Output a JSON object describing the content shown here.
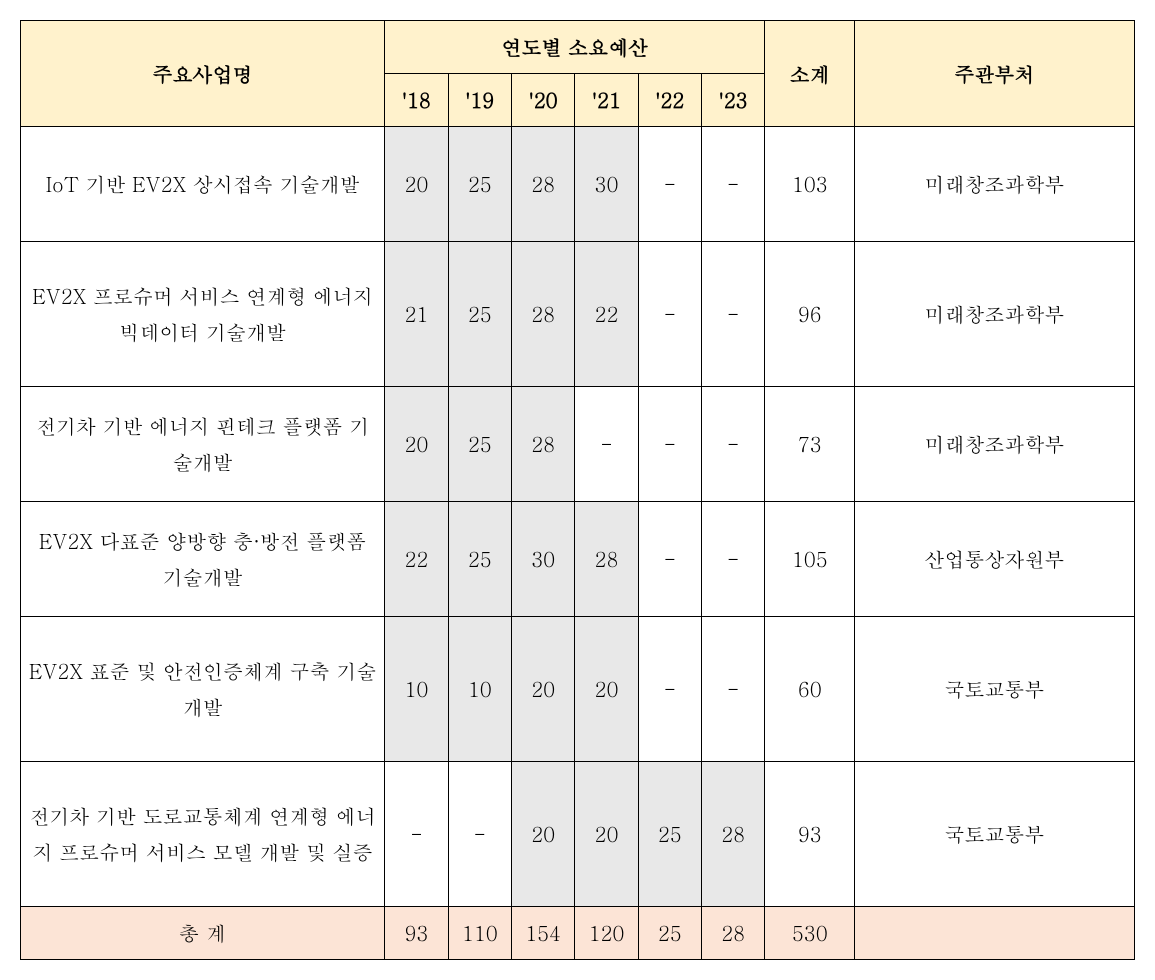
{
  "table": {
    "type": "table",
    "headers": {
      "project": "주요사업명",
      "budget_group": "연도별 소요예산",
      "years": [
        "'18",
        "'19",
        "'20",
        "'21",
        "'22",
        "'23"
      ],
      "subtotal": "소계",
      "department": "주관부처"
    },
    "rows": [
      {
        "project": "IoT 기반 EV2X 상시접속 기술개발",
        "values": [
          "20",
          "25",
          "28",
          "30",
          "-",
          "-"
        ],
        "shaded": [
          true,
          true,
          true,
          true,
          false,
          false
        ],
        "subtotal": "103",
        "department": "미래창조과학부"
      },
      {
        "project": "EV2X 프로슈머 서비스 연계형 에너지 빅데이터 기술개발",
        "values": [
          "21",
          "25",
          "28",
          "22",
          "-",
          "-"
        ],
        "shaded": [
          true,
          true,
          true,
          true,
          false,
          false
        ],
        "subtotal": "96",
        "department": "미래창조과학부"
      },
      {
        "project": "전기차 기반 에너지 핀테크 플랫폼 기술개발",
        "values": [
          "20",
          "25",
          "28",
          "-",
          "-",
          "-"
        ],
        "shaded": [
          true,
          true,
          true,
          false,
          false,
          false
        ],
        "subtotal": "73",
        "department": "미래창조과학부"
      },
      {
        "project": "EV2X 다표준 양방향 충·방전 플랫폼 기술개발",
        "values": [
          "22",
          "25",
          "30",
          "28",
          "-",
          "-"
        ],
        "shaded": [
          true,
          true,
          true,
          true,
          false,
          false
        ],
        "subtotal": "105",
        "department": "산업통상자원부"
      },
      {
        "project": "EV2X 표준 및 안전인증체계 구축 기술개발",
        "values": [
          "10",
          "10",
          "20",
          "20",
          "-",
          "-"
        ],
        "shaded": [
          true,
          true,
          true,
          true,
          false,
          false
        ],
        "subtotal": "60",
        "department": "국토교통부"
      },
      {
        "project": "전기차 기반 도로교통체계 연계형 에너지 프로슈머 서비스 모델 개발 및 실증",
        "values": [
          "-",
          "-",
          "20",
          "20",
          "25",
          "28"
        ],
        "shaded": [
          false,
          false,
          true,
          true,
          true,
          true
        ],
        "subtotal": "93",
        "department": "국토교통부"
      }
    ],
    "total": {
      "label": "총 계",
      "values": [
        "93",
        "110",
        "154",
        "120",
        "25",
        "28"
      ],
      "subtotal": "530",
      "department": ""
    },
    "colors": {
      "header_bg": "#fff2cc",
      "shaded_bg": "#e8e8e8",
      "total_bg": "#fce4d6",
      "border": "#000000",
      "text": "#000000",
      "background": "#ffffff"
    },
    "column_widths": {
      "project": 345,
      "year": 60,
      "subtotal": 85,
      "department": 265
    },
    "font_size": 20
  }
}
